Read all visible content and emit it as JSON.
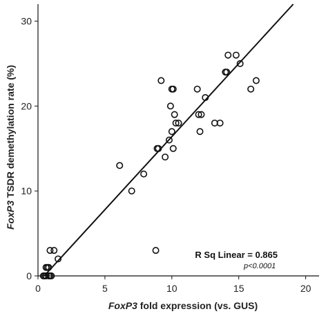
{
  "chart_data": {
    "type": "scatter",
    "xlabel": {
      "italic": "FoxP3",
      "rest": " fold expression (vs. GUS)"
    },
    "ylabel": {
      "italic": "FoxP3",
      "rest": " TSDR demethylation rate (%)"
    },
    "xlim": [
      0,
      21
    ],
    "ylim": [
      0,
      32
    ],
    "xticks": [
      0,
      5,
      10,
      15,
      20
    ],
    "yticks": [
      0,
      10,
      20,
      30
    ],
    "grid": false,
    "fit_line": {
      "slope": 1.72,
      "intercept": -0.8
    },
    "annotation": {
      "main": "R Sq Linear = 0.865",
      "sub": "p<0.0001"
    },
    "colors": {
      "marker": "#111111",
      "line": "#111111",
      "axis": "#111111"
    },
    "points": [
      [
        0.4,
        0
      ],
      [
        0.5,
        0
      ],
      [
        0.6,
        0
      ],
      [
        0.8,
        0
      ],
      [
        0.9,
        0
      ],
      [
        1.0,
        0
      ],
      [
        0.6,
        1
      ],
      [
        0.7,
        1
      ],
      [
        0.8,
        1
      ],
      [
        1.5,
        2
      ],
      [
        0.9,
        3
      ],
      [
        1.2,
        3
      ],
      [
        8.8,
        3
      ],
      [
        6.1,
        13
      ],
      [
        7.0,
        10
      ],
      [
        7.9,
        12
      ],
      [
        8.9,
        15
      ],
      [
        9.0,
        15
      ],
      [
        9.2,
        23
      ],
      [
        9.5,
        14
      ],
      [
        9.8,
        16
      ],
      [
        9.9,
        20
      ],
      [
        10.0,
        17
      ],
      [
        10.0,
        22
      ],
      [
        10.1,
        22
      ],
      [
        10.1,
        15
      ],
      [
        10.2,
        19
      ],
      [
        10.3,
        18
      ],
      [
        10.5,
        18
      ],
      [
        11.9,
        22
      ],
      [
        12.0,
        19
      ],
      [
        12.1,
        17
      ],
      [
        12.2,
        19
      ],
      [
        12.5,
        21
      ],
      [
        13.2,
        18
      ],
      [
        13.6,
        18
      ],
      [
        14.0,
        24
      ],
      [
        14.1,
        24
      ],
      [
        14.2,
        26
      ],
      [
        14.8,
        26
      ],
      [
        15.1,
        25
      ],
      [
        15.9,
        22
      ],
      [
        16.3,
        23
      ]
    ]
  }
}
